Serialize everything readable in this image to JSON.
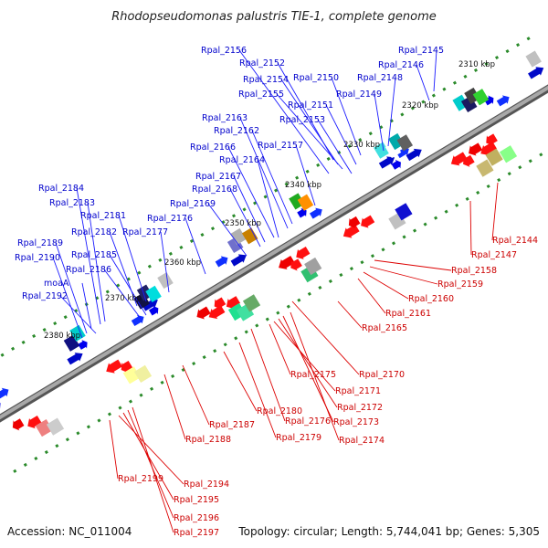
{
  "title": "Rhodopseudomonas palustris TIE-1, complete genome",
  "footer": {
    "accession": "Accession: NC_011004",
    "summary": "Topology: circular; Length: 5,744,041 bp; Genes: 5,305"
  },
  "colors": {
    "forward_label": "#0000cc",
    "reverse_label": "#cc0000",
    "backbone": "#808080",
    "tick": "#2a8a2a"
  },
  "kbp_ticks": [
    "2310 kbp",
    "2320 kbp",
    "2330 kbp",
    "2340 kbp",
    "2350 kbp",
    "2360 kbp",
    "2370 kbp",
    "2380 kbp"
  ],
  "forward_genes": [
    "Rpal_2156",
    "Rpal_2145",
    "Rpal_2152",
    "Rpal_2146",
    "Rpal_2154",
    "Rpal_2150",
    "Rpal_2148",
    "Rpal_2155",
    "Rpal_2149",
    "Rpal_2151",
    "Rpal_2153",
    "Rpal_2163",
    "Rpal_2162",
    "Rpal_2166",
    "Rpal_2157",
    "Rpal_2164",
    "Rpal_2167",
    "Rpal_2168",
    "Rpal_2169",
    "Rpal_2176",
    "Rpal_2184",
    "Rpal_2183",
    "Rpal_2181",
    "Rpal_2182",
    "Rpal_2177",
    "Rpal_2189",
    "Rpal_2185",
    "Rpal_2190",
    "Rpal_2186",
    "moaA",
    "Rpal_2192"
  ],
  "reverse_genes": [
    "Rpal_2144",
    "Rpal_2147",
    "Rpal_2158",
    "Rpal_2159",
    "Rpal_2160",
    "Rpal_2161",
    "Rpal_2165",
    "Rpal_2170",
    "Rpal_2175",
    "Rpal_2171",
    "Rpal_2172",
    "Rpal_2173",
    "Rpal_2176",
    "Rpal_2174",
    "Rpal_2180",
    "Rpal_2179",
    "Rpal_2187",
    "Rpal_2188",
    "Rpal_2199",
    "Rpal_2194",
    "Rpal_2195",
    "Rpal_2196",
    "Rpal_2197"
  ]
}
